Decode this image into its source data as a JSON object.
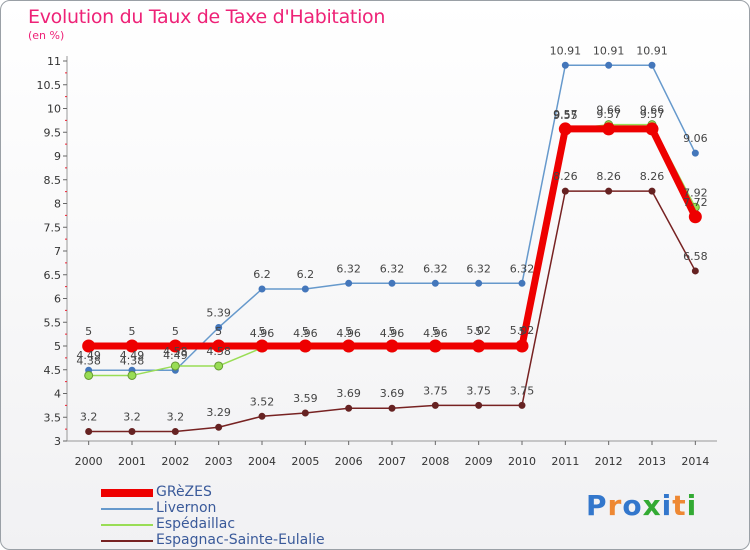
{
  "title": "Evolution du Taux de Taxe d'Habitation",
  "unit_label": "(en %)",
  "logo": {
    "text": "Proxiti",
    "colors": [
      "#3377cc",
      "#ee8833",
      "#3377cc",
      "#33aa33",
      "#3377cc",
      "#ee8833",
      "#33aa33"
    ]
  },
  "chart_data": {
    "type": "line",
    "title": "Evolution du Taux de Taxe d'Habitation",
    "ylabel": "(en %)",
    "xlabel": "",
    "x": [
      "2000",
      "2001",
      "2002",
      "2003",
      "2004",
      "2005",
      "2006",
      "2007",
      "2008",
      "2009",
      "2010",
      "2011",
      "2012",
      "2013",
      "2014"
    ],
    "ylim": [
      3,
      11
    ],
    "yticks": [
      "3",
      "3.5",
      "4",
      "4.5",
      "5",
      "5.5",
      "6",
      "6.5",
      "7",
      "7.5",
      "8",
      "8.5",
      "9",
      "9.5",
      "10",
      "10.5",
      "11"
    ],
    "grid": false,
    "legend_position": "bottom-left",
    "series": [
      {
        "name": "GRèZES",
        "color": "#ee0000",
        "values": [
          5,
          5,
          5,
          5,
          5,
          5,
          5,
          5,
          5,
          5,
          5,
          9.57,
          9.57,
          9.57,
          7.72
        ],
        "labels": [
          "5",
          "5",
          "5",
          "5",
          "5",
          "5",
          "5",
          "5",
          "5",
          "5",
          "5",
          "9.57",
          "9.57",
          "9.57",
          "7.72"
        ]
      },
      {
        "name": "Livernon",
        "color": "#6699cc",
        "values": [
          4.49,
          4.49,
          4.49,
          5.39,
          6.2,
          6.2,
          6.32,
          6.32,
          6.32,
          6.32,
          6.32,
          10.91,
          10.91,
          10.91,
          9.06
        ],
        "labels": [
          "4.49",
          "4.49",
          "4.49",
          "5.39",
          "6.2",
          "6.2",
          "6.32",
          "6.32",
          "6.32",
          "6.32",
          "6.32",
          "10.91",
          "10.91",
          "10.91",
          "9.06"
        ]
      },
      {
        "name": "Espédaillac",
        "color": "#99dd55",
        "values": [
          4.38,
          4.38,
          4.58,
          4.58,
          4.96,
          4.96,
          4.96,
          4.96,
          4.96,
          5.02,
          5.02,
          9.55,
          9.66,
          9.66,
          7.92
        ],
        "labels": [
          "4.38",
          "4.38",
          "4.58",
          "4.58",
          "4.96",
          "4.96",
          "4.96",
          "4.96",
          "4.96",
          "5.02",
          "5.02",
          "9.55",
          "9.66",
          "9.66",
          "7.92"
        ]
      },
      {
        "name": "Espagnac-Sainte-Eulalie",
        "color": "#772222",
        "values": [
          3.2,
          3.2,
          3.2,
          3.29,
          3.52,
          3.59,
          3.69,
          3.69,
          3.75,
          3.75,
          3.75,
          8.26,
          8.26,
          8.26,
          6.58
        ],
        "labels": [
          "3.2",
          "3.2",
          "3.2",
          "3.29",
          "3.52",
          "3.59",
          "3.69",
          "3.69",
          "3.75",
          "3.75",
          "3.75",
          "8.26",
          "8.26",
          "8.26",
          "6.58"
        ]
      }
    ]
  }
}
